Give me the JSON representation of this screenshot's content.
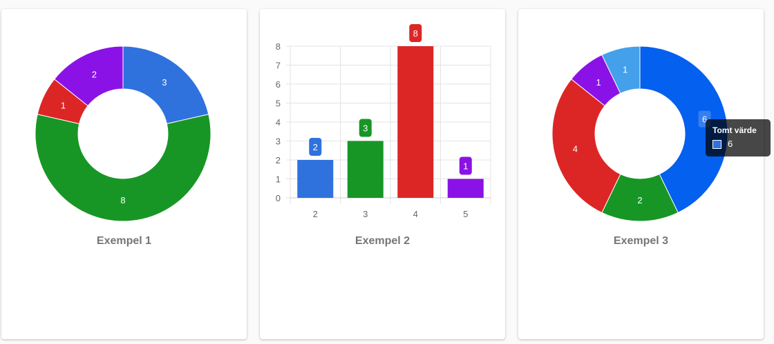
{
  "chart_data": [
    {
      "type": "pie",
      "variant": "doughnut",
      "title": "Exempel 1",
      "values": [
        3,
        8,
        1,
        2
      ],
      "colors": [
        "#2f72de",
        "#189625",
        "#dc2626",
        "#8b12e6"
      ]
    },
    {
      "type": "bar",
      "title": "Exempel 2",
      "categories": [
        "2",
        "3",
        "4",
        "5"
      ],
      "values": [
        2,
        3,
        8,
        1
      ],
      "colors": [
        "#2f72de",
        "#189625",
        "#dc2626",
        "#8b12e6"
      ],
      "ylim": [
        0,
        8
      ],
      "yticks": [
        0,
        1,
        2,
        3,
        4,
        5,
        6,
        7,
        8
      ],
      "grid": true
    },
    {
      "type": "pie",
      "variant": "doughnut",
      "title": "Exempel 3",
      "values": [
        6,
        2,
        4,
        1,
        1
      ],
      "colors": [
        "#0460ee",
        "#189625",
        "#dc2626",
        "#8b12e6",
        "#44a0ea"
      ],
      "tooltip": {
        "title": "Tomt värde",
        "value": "6",
        "color": "#2f72de"
      }
    }
  ]
}
